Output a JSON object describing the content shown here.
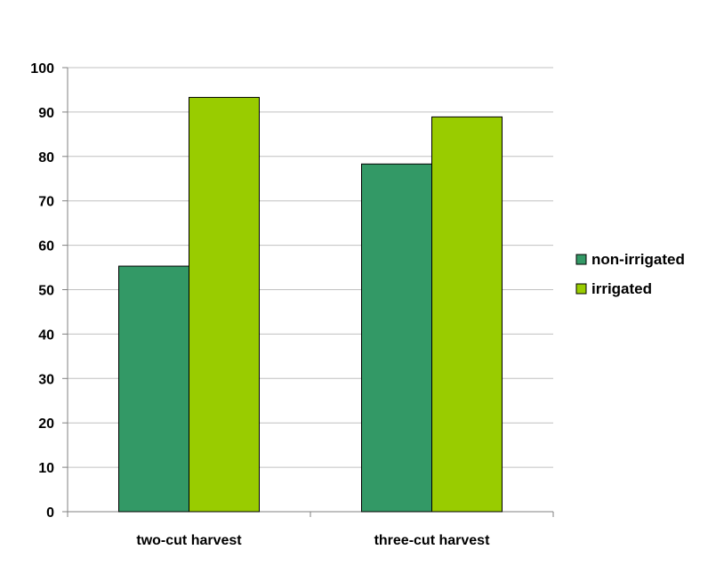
{
  "chart_data": {
    "type": "bar",
    "categories": [
      "two-cut harvest",
      "three-cut harvest"
    ],
    "series": [
      {
        "name": "non-irrigated",
        "values": [
          55.3,
          78.3
        ],
        "color": "#339966"
      },
      {
        "name": "irrigated",
        "values": [
          93.3,
          88.9
        ],
        "color": "#99cc00"
      }
    ],
    "ylim": [
      0,
      100
    ],
    "yticks": [
      "0",
      "10",
      "20",
      "30",
      "40",
      "50",
      "60",
      "70",
      "80",
      "90",
      "100"
    ],
    "grid": true,
    "gridline_color": "#c0c0c0",
    "legend_position": "right",
    "title": "",
    "xlabel": "",
    "ylabel": ""
  }
}
